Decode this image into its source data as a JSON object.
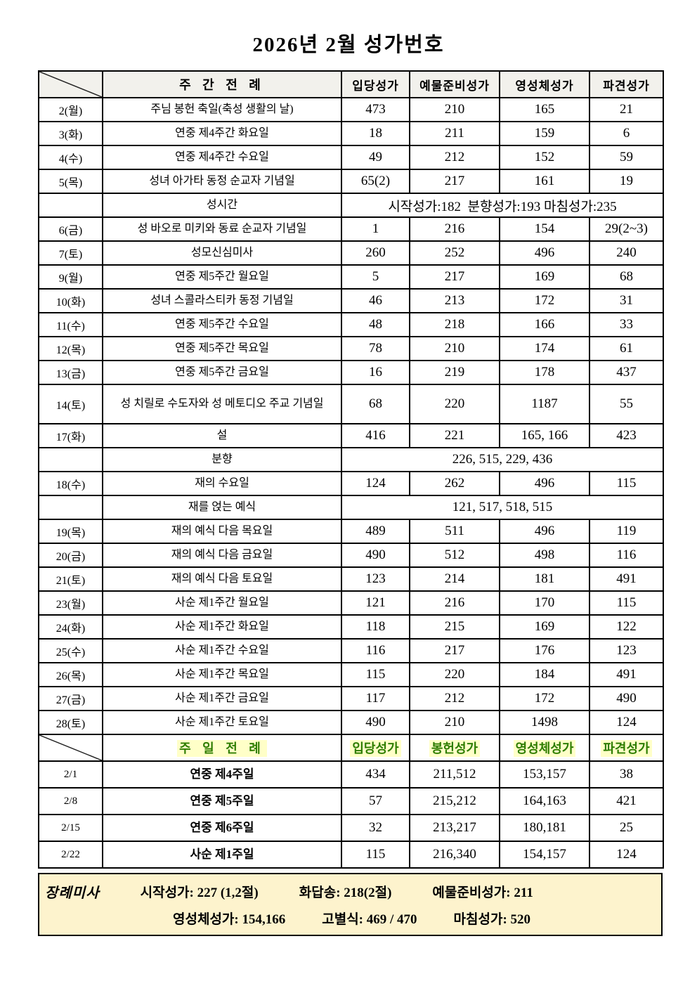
{
  "title": "2026년 2월 성가번호",
  "colors": {
    "header_bg": "#f2f1ec",
    "accent_green": "#2e7d00",
    "highlight_yellow": "#ffffc8",
    "footer_bg": "#fdf3cd",
    "border": "#000000"
  },
  "weekday": {
    "headers": {
      "liturgy": "주 간 전 례",
      "entrance": "입당성가",
      "offertory": "예물준비성가",
      "communion": "영성체성가",
      "dismissal": "파견성가"
    },
    "rows": [
      {
        "date": "2(월)",
        "name": "주님 봉헌 축일(축성 생활의 날)",
        "values": [
          "473",
          "210",
          "165",
          "21"
        ]
      },
      {
        "date": "3(화)",
        "name": "연중 제4주간 화요일",
        "values": [
          "18",
          "211",
          "159",
          "6"
        ]
      },
      {
        "date": "4(수)",
        "name": "연중 제4주간 수요일",
        "values": [
          "49",
          "212",
          "152",
          "59"
        ]
      },
      {
        "date": "5(목)",
        "name": "성녀 아가타 동정 순교자 기념일",
        "values": [
          "65(2)",
          "217",
          "161",
          "19"
        ]
      },
      {
        "date": "",
        "name": "성시간",
        "span": "시작성가:182  분향성가:193 마침성가:235"
      },
      {
        "date": "6(금)",
        "name": "성 바오로 미키와 동료 순교자 기념일",
        "values": [
          "1",
          "216",
          "154",
          "29(2~3)"
        ]
      },
      {
        "date": "7(토)",
        "name": "성모신심미사",
        "values": [
          "260",
          "252",
          "496",
          "240"
        ]
      },
      {
        "date": "9(월)",
        "name": "연중 제5주간 월요일",
        "values": [
          "5",
          "217",
          "169",
          "68"
        ]
      },
      {
        "date": "10(화)",
        "name": "성녀 스콜라스티카 동정 기념일",
        "values": [
          "46",
          "213",
          "172",
          "31"
        ]
      },
      {
        "date": "11(수)",
        "name": "연중 제5주간 수요일",
        "values": [
          "48",
          "218",
          "166",
          "33"
        ]
      },
      {
        "date": "12(목)",
        "name": "연중 제5주간 목요일",
        "values": [
          "78",
          "210",
          "174",
          "61"
        ]
      },
      {
        "date": "13(금)",
        "name": "연중 제5주간 금요일",
        "values": [
          "16",
          "219",
          "178",
          "437"
        ]
      },
      {
        "date": "14(토)",
        "name": "성 치릴로 수도자와 성 메토디오 주교 기념일",
        "values": [
          "68",
          "220",
          "1187",
          "55"
        ],
        "tall": true
      },
      {
        "date": "17(화)",
        "name": "설",
        "values": [
          "416",
          "221",
          "165, 166",
          "423"
        ]
      },
      {
        "date": "",
        "name": "분향",
        "span": "226, 515, 229, 436"
      },
      {
        "date": "18(수)",
        "name": "재의 수요일",
        "values": [
          "124",
          "262",
          "496",
          "115"
        ]
      },
      {
        "date": "",
        "name": "재를 얹는 예식",
        "span": "121, 517, 518, 515"
      },
      {
        "date": "19(목)",
        "name": "재의 예식 다음 목요일",
        "values": [
          "489",
          "511",
          "496",
          "119"
        ]
      },
      {
        "date": "20(금)",
        "name": "재의 예식 다음 금요일",
        "values": [
          "490",
          "512",
          "498",
          "116"
        ]
      },
      {
        "date": "21(토)",
        "name": "재의 예식 다음 토요일",
        "values": [
          "123",
          "214",
          "181",
          "491"
        ]
      },
      {
        "date": "23(월)",
        "name": "사순 제1주간 월요일",
        "values": [
          "121",
          "216",
          "170",
          "115"
        ]
      },
      {
        "date": "24(화)",
        "name": "사순 제1주간 화요일",
        "values": [
          "118",
          "215",
          "169",
          "122"
        ]
      },
      {
        "date": "25(수)",
        "name": "사순 제1주간 수요일",
        "values": [
          "116",
          "217",
          "176",
          "123"
        ]
      },
      {
        "date": "26(목)",
        "name": "사순 제1주간 목요일",
        "values": [
          "115",
          "220",
          "184",
          "491"
        ]
      },
      {
        "date": "27(금)",
        "name": "사순 제1주간 금요일",
        "values": [
          "117",
          "212",
          "172",
          "490"
        ]
      },
      {
        "date": "28(토)",
        "name": "사순 제1주간 토요일",
        "values": [
          "490",
          "210",
          "1498",
          "124"
        ]
      }
    ]
  },
  "sunday": {
    "headers": {
      "liturgy": "주 일 전 례",
      "entrance": "입당성가",
      "offertory": "봉헌성가",
      "communion": "영성체성가",
      "dismissal": "파견성가"
    },
    "rows": [
      {
        "date": "2/1",
        "name": "연중 제4주일",
        "values": [
          "434",
          "211,512",
          "153,157",
          "38"
        ]
      },
      {
        "date": "2/8",
        "name": "연중 제5주일",
        "values": [
          "57",
          "215,212",
          "164,163",
          "421"
        ]
      },
      {
        "date": "2/15",
        "name": "연중 제6주일",
        "values": [
          "32",
          "213,217",
          "180,181",
          "25"
        ]
      },
      {
        "date": "2/22",
        "name": "사순 제1주일",
        "values": [
          "115",
          "216,340",
          "154,157",
          "124"
        ]
      }
    ]
  },
  "funeral": {
    "label": "장례미사",
    "line1": [
      "시작성가: 227 (1,2절)",
      "화답송: 218(2절)",
      "예물준비성가: 211"
    ],
    "line2": [
      "영성체성가: 154,166",
      "고별식: 469 / 470",
      "마침성가: 520"
    ]
  }
}
